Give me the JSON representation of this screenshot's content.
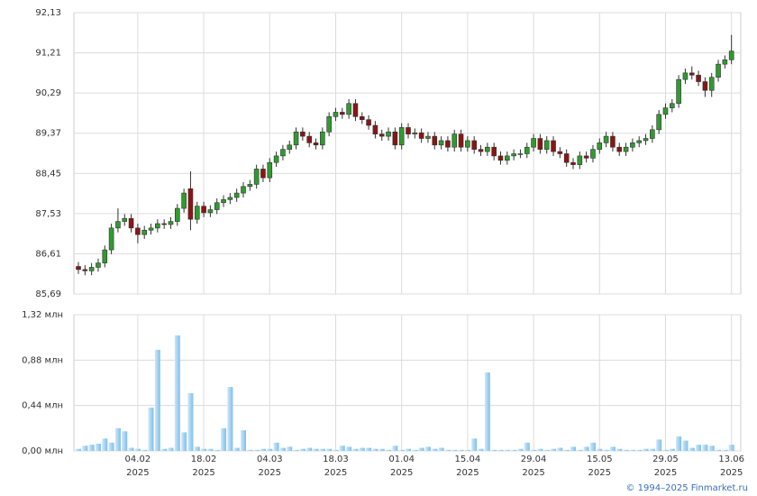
{
  "chart_data": {
    "type": "candlestick",
    "categories": [
      null,
      null,
      null,
      null,
      null,
      null,
      null,
      null,
      null,
      "04.02\n2025",
      null,
      null,
      null,
      null,
      null,
      null,
      null,
      null,
      null,
      "18.02\n2025",
      null,
      null,
      null,
      null,
      null,
      null,
      null,
      null,
      null,
      "04.03\n2025",
      null,
      null,
      null,
      null,
      null,
      null,
      null,
      null,
      null,
      "18.03\n2025",
      null,
      null,
      null,
      null,
      null,
      null,
      null,
      null,
      null,
      "01.04\n2025",
      null,
      null,
      null,
      null,
      null,
      null,
      null,
      null,
      null,
      "15.04\n2025",
      null,
      null,
      null,
      null,
      null,
      null,
      null,
      null,
      null,
      "29.04\n2025",
      null,
      null,
      null,
      null,
      null,
      null,
      null,
      null,
      null,
      "15.05\n2025",
      null,
      null,
      null,
      null,
      null,
      null,
      null,
      null,
      null,
      "29.05\n2025",
      null,
      null,
      null,
      null,
      null,
      null,
      null,
      null,
      null,
      "13.06\n2025"
    ],
    "open": [
      86.32,
      86.25,
      86.22,
      86.3,
      86.4,
      86.7,
      87.2,
      87.35,
      87.42,
      87.2,
      87.05,
      87.15,
      87.2,
      87.3,
      87.28,
      87.35,
      87.65,
      88.1,
      87.4,
      87.7,
      87.55,
      87.62,
      87.78,
      87.85,
      87.9,
      88.0,
      88.15,
      88.2,
      88.55,
      88.35,
      88.7,
      88.85,
      89.0,
      89.1,
      89.4,
      89.3,
      89.15,
      89.1,
      89.4,
      89.75,
      89.85,
      89.8,
      90.05,
      89.75,
      89.68,
      89.55,
      89.35,
      89.3,
      89.4,
      89.1,
      89.5,
      89.35,
      89.38,
      89.25,
      89.3,
      89.1,
      89.2,
      89.05,
      89.35,
      89.05,
      89.2,
      89.0,
      88.95,
      89.05,
      88.85,
      88.75,
      88.85,
      88.9,
      88.9,
      89.05,
      89.25,
      89.0,
      89.2,
      88.95,
      88.9,
      88.7,
      88.65,
      88.85,
      88.8,
      89.0,
      89.15,
      89.3,
      89.05,
      88.95,
      89.05,
      89.15,
      89.2,
      89.25,
      89.45,
      89.8,
      89.95,
      90.05,
      90.6,
      90.75,
      90.7,
      90.55,
      90.35,
      90.65,
      90.95,
      91.05
    ],
    "high": [
      86.42,
      86.35,
      86.4,
      86.5,
      86.8,
      87.3,
      87.65,
      87.52,
      87.52,
      87.3,
      87.25,
      87.3,
      87.4,
      87.4,
      87.45,
      87.75,
      88.1,
      88.5,
      87.8,
      87.8,
      87.72,
      87.88,
      87.95,
      88.0,
      88.1,
      88.25,
      88.3,
      88.65,
      88.65,
      88.8,
      88.95,
      89.1,
      89.2,
      89.5,
      89.5,
      89.4,
      89.25,
      89.5,
      89.85,
      89.95,
      89.95,
      90.15,
      90.15,
      89.85,
      89.78,
      89.65,
      89.45,
      89.5,
      89.5,
      89.6,
      89.6,
      89.48,
      89.48,
      89.4,
      89.4,
      89.3,
      89.3,
      89.45,
      89.45,
      89.3,
      89.3,
      89.1,
      89.15,
      89.15,
      88.95,
      88.95,
      89.0,
      89.0,
      89.15,
      89.35,
      89.35,
      89.3,
      89.3,
      89.05,
      89.0,
      88.8,
      88.95,
      88.95,
      89.1,
      89.25,
      89.4,
      89.4,
      89.15,
      89.15,
      89.25,
      89.3,
      89.35,
      89.55,
      89.9,
      90.05,
      90.15,
      90.7,
      90.85,
      90.9,
      90.8,
      90.65,
      90.75,
      91.05,
      91.15,
      91.62
    ],
    "low": [
      86.15,
      86.12,
      86.12,
      86.2,
      86.3,
      86.6,
      87.1,
      87.25,
      87.1,
      86.85,
      86.95,
      87.05,
      87.1,
      87.18,
      87.18,
      87.25,
      87.55,
      87.15,
      87.3,
      87.45,
      87.45,
      87.52,
      87.68,
      87.75,
      87.8,
      87.9,
      88.05,
      88.1,
      88.25,
      88.25,
      88.6,
      88.75,
      88.9,
      89.0,
      89.2,
      89.05,
      89.0,
      89.0,
      89.3,
      89.65,
      89.7,
      89.7,
      89.65,
      89.58,
      89.45,
      89.25,
      89.2,
      89.2,
      89.0,
      89.0,
      89.25,
      89.25,
      89.15,
      89.15,
      89.0,
      89.0,
      88.95,
      88.95,
      88.95,
      88.95,
      88.9,
      88.85,
      88.85,
      88.75,
      88.65,
      88.65,
      88.75,
      88.8,
      88.8,
      88.95,
      88.9,
      88.9,
      88.85,
      88.8,
      88.6,
      88.55,
      88.55,
      88.7,
      88.7,
      88.9,
      89.05,
      88.95,
      88.85,
      88.85,
      88.95,
      89.05,
      89.1,
      89.15,
      89.35,
      89.7,
      89.85,
      89.95,
      90.5,
      90.6,
      90.45,
      90.2,
      90.2,
      90.55,
      90.85,
      90.95
    ],
    "close": [
      86.25,
      86.22,
      86.3,
      86.4,
      86.7,
      87.2,
      87.35,
      87.42,
      87.2,
      87.05,
      87.15,
      87.2,
      87.3,
      87.28,
      87.35,
      87.65,
      88.0,
      87.4,
      87.7,
      87.55,
      87.62,
      87.78,
      87.85,
      87.9,
      88.0,
      88.15,
      88.2,
      88.55,
      88.35,
      88.7,
      88.85,
      89.0,
      89.1,
      89.4,
      89.3,
      89.15,
      89.1,
      89.4,
      89.75,
      89.85,
      89.8,
      90.05,
      89.75,
      89.68,
      89.55,
      89.35,
      89.3,
      89.4,
      89.1,
      89.5,
      89.35,
      89.38,
      89.25,
      89.3,
      89.1,
      89.2,
      89.05,
      89.35,
      89.05,
      89.2,
      89.0,
      88.95,
      89.05,
      88.85,
      88.75,
      88.85,
      88.9,
      88.9,
      89.05,
      89.25,
      89.0,
      89.2,
      88.95,
      88.9,
      88.7,
      88.65,
      88.85,
      88.8,
      89.0,
      89.15,
      89.3,
      89.05,
      88.95,
      89.05,
      89.15,
      89.2,
      89.25,
      89.45,
      89.8,
      89.95,
      90.05,
      90.6,
      90.75,
      90.7,
      90.55,
      90.35,
      90.65,
      90.95,
      91.05,
      91.25
    ],
    "volume": [
      0.02,
      0.05,
      0.06,
      0.07,
      0.12,
      0.08,
      0.22,
      0.19,
      0.03,
      0.02,
      0.01,
      0.42,
      0.98,
      0.02,
      0.03,
      1.12,
      0.18,
      0.56,
      0.04,
      0.02,
      0.02,
      0.01,
      0.22,
      0.62,
      0.03,
      0.2,
      0.01,
      0.01,
      0.02,
      0.02,
      0.08,
      0.03,
      0.04,
      0.01,
      0.02,
      0.03,
      0.02,
      0.02,
      0.02,
      0.01,
      0.05,
      0.04,
      0.02,
      0.03,
      0.03,
      0.02,
      0.02,
      0.01,
      0.05,
      0.01,
      0.02,
      0.01,
      0.03,
      0.04,
      0.02,
      0.03,
      0.01,
      0.01,
      0.01,
      0.01,
      0.12,
      0.02,
      0.76,
      0.01,
      0.01,
      0.01,
      0.01,
      0.02,
      0.08,
      0.01,
      0.02,
      0.01,
      0.02,
      0.03,
      0.01,
      0.04,
      0.01,
      0.04,
      0.08,
      0.02,
      0.01,
      0.04,
      0.02,
      0.01,
      0.01,
      0.01,
      0.02,
      0.02,
      0.11,
      0.01,
      0.02,
      0.14,
      0.1,
      0.03,
      0.06,
      0.06,
      0.05,
      0.01,
      0.01,
      0.06
    ],
    "up_color": "#2f9b2f",
    "down_color": "#8c1414",
    "volume_color": "#8ec8ef",
    "ylim": [
      85.69,
      92.13
    ],
    "yticks": [
      {
        "value": 85.69,
        "label": "85,69"
      },
      {
        "value": 86.61,
        "label": "86,61"
      },
      {
        "value": 87.53,
        "label": "87,53"
      },
      {
        "value": 88.45,
        "label": "88,45"
      },
      {
        "value": 89.37,
        "label": "89,37"
      },
      {
        "value": 90.29,
        "label": "90,29"
      },
      {
        "value": 91.21,
        "label": "91,21"
      },
      {
        "value": 92.13,
        "label": "92,13"
      }
    ],
    "y2lim": [
      0,
      1.32
    ],
    "y2ticks": [
      {
        "value": 0,
        "label": "0,00 млн"
      },
      {
        "value": 0.44,
        "label": "0,44 млн"
      },
      {
        "value": 0.88,
        "label": "0,88 млн"
      },
      {
        "value": 1.32,
        "label": "1,32 млн"
      }
    ],
    "grid": true,
    "source": "© 1994–2025 Finmarket.ru"
  }
}
